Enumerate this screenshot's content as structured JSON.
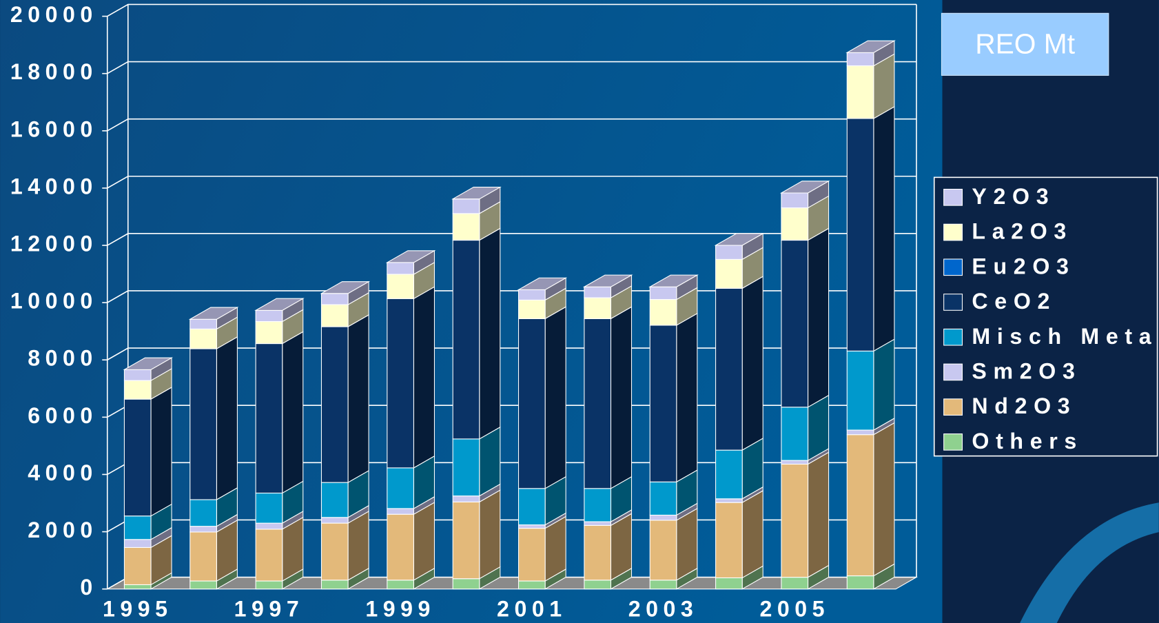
{
  "chart_data": {
    "type": "bar3d_stacked",
    "title": "REO  Mt",
    "categories": [
      "1995",
      null,
      "1997",
      null,
      "1999",
      null,
      "2001",
      null,
      "2003",
      null,
      "2005",
      null
    ],
    "series": [
      {
        "name": "Others",
        "color": "#8fd18f",
        "values": [
          150,
          280,
          280,
          310,
          310,
          360,
          280,
          310,
          310,
          390,
          410,
          460
        ]
      },
      {
        "name": "Nd2O3",
        "color": "#e3b97a",
        "values": [
          1300,
          1710,
          1810,
          1990,
          2300,
          2680,
          1840,
          1910,
          2090,
          2630,
          3950,
          4930
        ]
      },
      {
        "name": "Sm2O3",
        "color": "#c8c8f0",
        "values": [
          280,
          200,
          210,
          200,
          200,
          210,
          120,
          130,
          180,
          130,
          130,
          160
        ]
      },
      {
        "name": "Misch Metal",
        "color": "#0099cc",
        "values": [
          820,
          930,
          1050,
          1220,
          1420,
          1990,
          1270,
          1160,
          1160,
          1700,
          1860,
          2760
        ]
      },
      {
        "name": "CeO2",
        "color": "#0a3366",
        "values": [
          4080,
          5270,
          5220,
          5440,
          5910,
          6940,
          5930,
          5930,
          5470,
          5650,
          5830,
          8120
        ]
      },
      {
        "name": "Eu2O3",
        "color": "#0066cc",
        "values": [
          0,
          0,
          0,
          0,
          0,
          0,
          0,
          0,
          0,
          0,
          0,
          0
        ]
      },
      {
        "name": "La2O3",
        "color": "#ffffcc",
        "values": [
          650,
          690,
          770,
          770,
          850,
          930,
          650,
          730,
          900,
          1010,
          1130,
          1840
        ]
      },
      {
        "name": "Y2O3",
        "color": "#c8c8f0",
        "values": [
          380,
          340,
          390,
          390,
          410,
          510,
          360,
          380,
          440,
          490,
          520,
          460
        ]
      }
    ],
    "ylim": [
      0,
      20000
    ],
    "yticks": [
      0,
      2000,
      4000,
      6000,
      8000,
      10000,
      12000,
      14000,
      16000,
      18000,
      20000
    ],
    "grid": true
  }
}
